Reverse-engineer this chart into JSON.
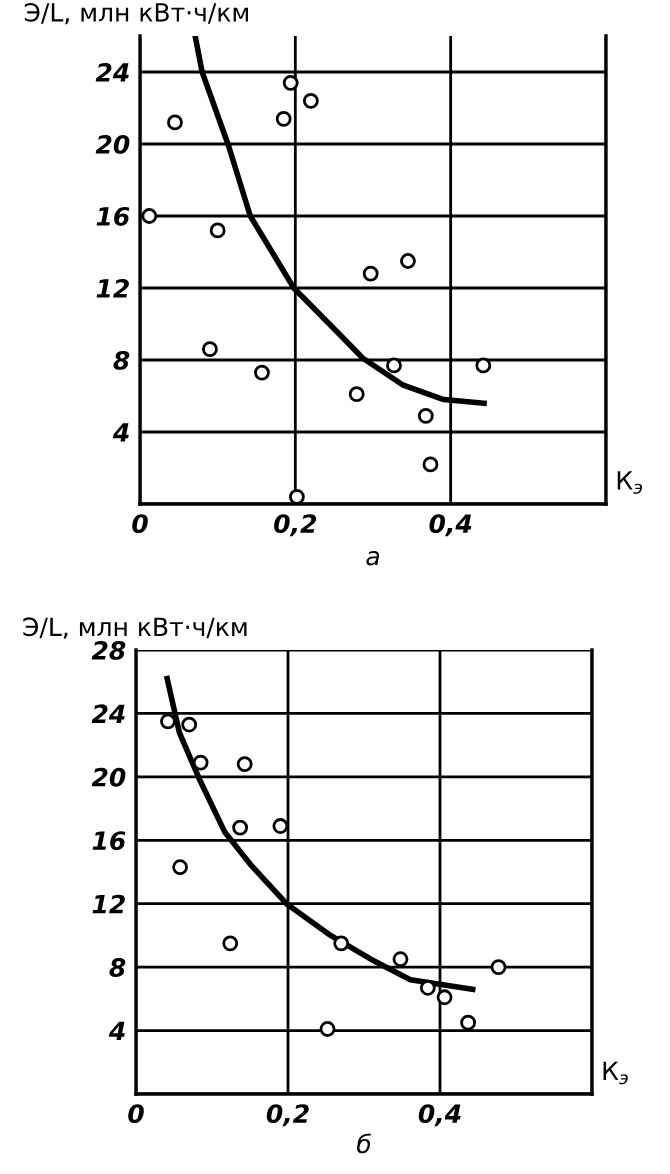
{
  "chart_data": [
    {
      "type": "scatter",
      "title": "а",
      "ylabel": "Э/L, млн кВт·ч/км",
      "xlabel": "К$_{э}$",
      "xlim": [
        0,
        0.6
      ],
      "ylim": [
        0,
        26
      ],
      "xticks": [
        {
          "value": 0,
          "label": "0"
        },
        {
          "value": 0.2,
          "label": "0,2"
        },
        {
          "value": 0.4,
          "label": "0,4"
        },
        {
          "value": 0.6,
          "label": null
        }
      ],
      "yticks": [
        {
          "value": 0,
          "label": null
        },
        4,
        8,
        12,
        16,
        20,
        24
      ],
      "grid": true,
      "series": [
        {
          "marker": "circle",
          "color": "#000000",
          "x": [
            0.012,
            0.045,
            0.1,
            0.09,
            0.157,
            0.185,
            0.194,
            0.22,
            0.202,
            0.297,
            0.345,
            0.279,
            0.327,
            0.368,
            0.374,
            0.442
          ],
          "values": [
            16.0,
            21.2,
            15.2,
            8.6,
            7.3,
            21.4,
            23.4,
            22.4,
            0.4,
            12.8,
            13.5,
            6.1,
            7.7,
            4.9,
            2.2,
            7.7
          ]
        },
        {
          "type": "line",
          "color": "#000000",
          "x": [
            0.071,
            0.08,
            0.114,
            0.142,
            0.198,
            0.253,
            0.287,
            0.339,
            0.391,
            0.443
          ],
          "values": [
            26.0,
            24.0,
            19.9,
            16.0,
            12.0,
            9.6,
            8.1,
            6.6,
            5.8,
            5.6
          ]
        }
      ]
    },
    {
      "type": "scatter",
      "title": "б",
      "ylabel": "Э/L, млн кВт·ч/км",
      "xlabel": "К$_{э}$",
      "xlim": [
        0,
        0.6
      ],
      "ylim": [
        0,
        28
      ],
      "xticks": [
        {
          "value": 0,
          "label": "0"
        },
        {
          "value": 0.2,
          "label": "0,2"
        },
        {
          "value": 0.4,
          "label": "0,4"
        },
        {
          "value": 0.6,
          "label": null
        }
      ],
      "yticks": [
        {
          "value": 0,
          "label": null
        },
        4,
        8,
        12,
        16,
        20,
        24,
        28
      ],
      "grid": true,
      "series": [
        {
          "marker": "circle",
          "color": "#000000",
          "x": [
            0.042,
            0.07,
            0.085,
            0.058,
            0.143,
            0.137,
            0.19,
            0.124,
            0.252,
            0.27,
            0.348,
            0.384,
            0.406,
            0.437,
            0.477
          ],
          "values": [
            23.5,
            23.3,
            20.9,
            14.3,
            20.8,
            16.8,
            16.9,
            9.5,
            4.1,
            9.5,
            8.5,
            6.7,
            6.1,
            4.5,
            8.0
          ]
        },
        {
          "type": "line",
          "color": "#000000",
          "x": [
            0.041,
            0.057,
            0.083,
            0.117,
            0.152,
            0.198,
            0.256,
            0.309,
            0.361,
            0.443
          ],
          "values": [
            26.2,
            22.8,
            19.9,
            16.5,
            14.4,
            12.0,
            10.0,
            8.5,
            7.2,
            6.6
          ]
        }
      ]
    }
  ]
}
